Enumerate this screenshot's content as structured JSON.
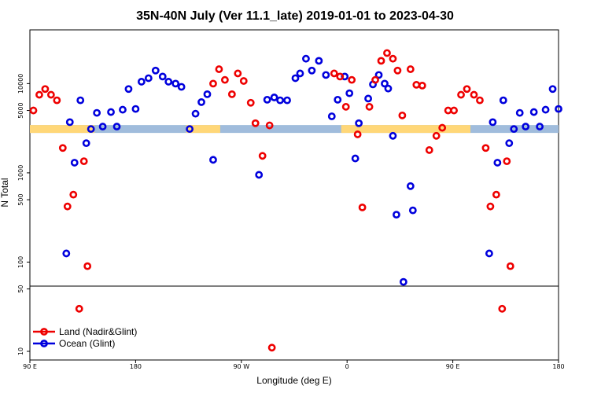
{
  "chart_data": {
    "type": "scatter",
    "title": "35N-40N July (Ver 11.1_late)   2019-01-01 to 2023-04-30",
    "xlabel": "Longitude (deg E)",
    "ylabel": "N Total",
    "x_ticks": [
      {
        "value": 90,
        "label": "90 E"
      },
      {
        "value": 180,
        "label": "180"
      },
      {
        "value": 270,
        "label": "90 W"
      },
      {
        "value": 360,
        "label": "0"
      },
      {
        "value": 450,
        "label": "90 E"
      },
      {
        "value": 540,
        "label": "180"
      }
    ],
    "xlim": [
      90,
      540
    ],
    "y_scale": "log",
    "ylim": [
      8,
      40000
    ],
    "y_break": 50,
    "y_ticks": [
      {
        "value": 10,
        "label": "10"
      },
      {
        "value": 50,
        "label": "50"
      },
      {
        "value": 100,
        "label": "100"
      },
      {
        "value": 500,
        "label": "500"
      },
      {
        "value": 1000,
        "label": "1000"
      },
      {
        "value": 5000,
        "label": "5000"
      },
      {
        "value": 10000,
        "label": "10000"
      }
    ],
    "legend_position": "bottom-left",
    "series": [
      {
        "name": "Land (Nadir&Glint)",
        "color": "#ee0000",
        "points": [
          [
            93,
            5000
          ],
          [
            98,
            7500
          ],
          [
            103,
            8700
          ],
          [
            108,
            7500
          ],
          [
            113,
            6500
          ],
          [
            118,
            1900
          ],
          [
            122,
            420
          ],
          [
            127,
            570
          ],
          [
            132,
            30
          ],
          [
            136,
            1350
          ],
          [
            139,
            90
          ],
          [
            246,
            10000
          ],
          [
            251,
            14500
          ],
          [
            256,
            11000
          ],
          [
            262,
            7600
          ],
          [
            267,
            13000
          ],
          [
            272,
            10700
          ],
          [
            278,
            6100
          ],
          [
            282,
            3600
          ],
          [
            288,
            1550
          ],
          [
            294,
            3400
          ],
          [
            296,
            11
          ],
          [
            349,
            13000
          ],
          [
            354,
            12000
          ],
          [
            359,
            5500
          ],
          [
            364,
            11000
          ],
          [
            369,
            2700
          ],
          [
            373,
            410
          ],
          [
            379,
            5500
          ],
          [
            384,
            11000
          ],
          [
            389,
            18000
          ],
          [
            394,
            22000
          ],
          [
            399,
            19000
          ],
          [
            403,
            14000
          ],
          [
            407,
            4400
          ],
          [
            414,
            14500
          ],
          [
            419,
            9700
          ],
          [
            424,
            9500
          ],
          [
            430,
            1800
          ],
          [
            436,
            2600
          ],
          [
            441,
            3200
          ],
          [
            446,
            5000
          ],
          [
            451,
            5000
          ],
          [
            457,
            7500
          ],
          [
            462,
            8700
          ],
          [
            468,
            7500
          ],
          [
            473,
            6500
          ],
          [
            478,
            1900
          ],
          [
            482,
            420
          ],
          [
            487,
            570
          ],
          [
            492,
            30
          ],
          [
            496,
            1350
          ],
          [
            499,
            90
          ]
        ]
      },
      {
        "name": "Ocean (Glint)",
        "color": "#0000dd",
        "points": [
          [
            121,
            125
          ],
          [
            124,
            3700
          ],
          [
            128,
            1300
          ],
          [
            133,
            6500
          ],
          [
            138,
            2150
          ],
          [
            142,
            3100
          ],
          [
            147,
            4700
          ],
          [
            152,
            3300
          ],
          [
            159,
            4800
          ],
          [
            164,
            3300
          ],
          [
            169,
            5100
          ],
          [
            174,
            8700
          ],
          [
            180,
            5200
          ],
          [
            185,
            10500
          ],
          [
            191,
            11500
          ],
          [
            197,
            14000
          ],
          [
            203,
            12000
          ],
          [
            208,
            10500
          ],
          [
            214,
            10000
          ],
          [
            219,
            9200
          ],
          [
            226,
            3100
          ],
          [
            231,
            4600
          ],
          [
            236,
            6200
          ],
          [
            241,
            7600
          ],
          [
            246,
            1400
          ],
          [
            285,
            950
          ],
          [
            292,
            6600
          ],
          [
            298,
            7000
          ],
          [
            303,
            6500
          ],
          [
            309,
            6500
          ],
          [
            316,
            11500
          ],
          [
            320,
            13000
          ],
          [
            325,
            19000
          ],
          [
            330,
            14000
          ],
          [
            336,
            18000
          ],
          [
            342,
            12500
          ],
          [
            347,
            4300
          ],
          [
            352,
            6600
          ],
          [
            358,
            12000
          ],
          [
            362,
            7800
          ],
          [
            367,
            1450
          ],
          [
            370,
            3600
          ],
          [
            378,
            6800
          ],
          [
            382,
            9800
          ],
          [
            387,
            12500
          ],
          [
            392,
            10000
          ],
          [
            395,
            8800
          ],
          [
            399,
            2600
          ],
          [
            402,
            340
          ],
          [
            408,
            60
          ],
          [
            414,
            710
          ],
          [
            416,
            380
          ],
          [
            481,
            125
          ],
          [
            484,
            3700
          ],
          [
            488,
            1300
          ],
          [
            493,
            6500
          ],
          [
            498,
            2150
          ],
          [
            502,
            3100
          ],
          [
            507,
            4700
          ],
          [
            512,
            3300
          ],
          [
            519,
            4800
          ],
          [
            524,
            3300
          ],
          [
            529,
            5100
          ],
          [
            535,
            8700
          ],
          [
            540,
            5200
          ]
        ]
      }
    ],
    "band": {
      "description_colors": {
        "land": "#ffd778",
        "ocean": "#a0bcdc"
      },
      "y_value": 3100,
      "land_ranges": [
        [
          90,
          145
        ],
        [
          223,
          252
        ],
        [
          355,
          465
        ],
        [
          540,
          540
        ]
      ]
    }
  }
}
